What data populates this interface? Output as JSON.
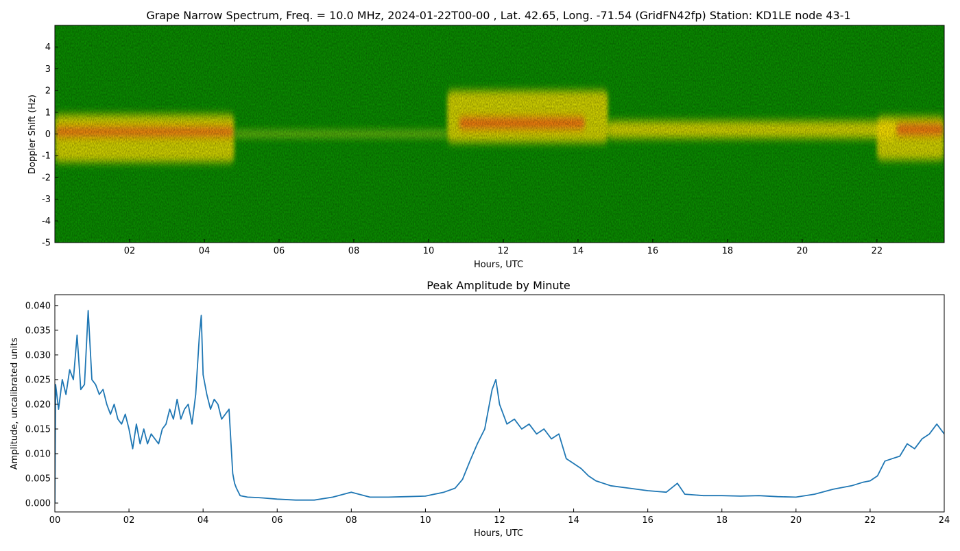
{
  "chart_data": [
    {
      "type": "heatmap",
      "title": "Grape Narrow Spectrum, Freq. = 10.0 MHz, 2024-01-22T00-00 , Lat.  42.65, Long. -71.54 (GridFN42fp) Station: KD1LE node 43-1",
      "xlabel": "Hours, UTC",
      "ylabel": "Doppler Shift (Hz)",
      "xlim": [
        0,
        23.8
      ],
      "ylim": [
        -5,
        5
      ],
      "x_ticks": [
        2,
        4,
        6,
        8,
        10,
        12,
        14,
        16,
        18,
        20,
        22
      ],
      "x_tick_labels": [
        "02",
        "04",
        "06",
        "08",
        "10",
        "12",
        "14",
        "16",
        "18",
        "20",
        "22"
      ],
      "y_ticks": [
        -5,
        -4,
        -3,
        -2,
        -1,
        0,
        1,
        2,
        3,
        4
      ],
      "y_tick_labels": [
        "-5",
        "-4",
        "-3",
        "-2",
        "-1",
        "0",
        "1",
        "2",
        "3",
        "4"
      ],
      "colors": {
        "background": "#0a8a00",
        "mid": "#c8e020",
        "high": "#ffe000",
        "peak": "#f06010"
      },
      "features": [
        {
          "x_start": 0.0,
          "x_end": 4.8,
          "center_hz": 0.1,
          "width_hz": 0.5,
          "level": "peak"
        },
        {
          "x_start": 0.0,
          "x_end": 4.8,
          "center_hz": -0.2,
          "width_hz": 2.2,
          "level": "high"
        },
        {
          "x_start": 4.8,
          "x_end": 10.5,
          "center_hz": 0.0,
          "width_hz": 0.2,
          "level": "mid"
        },
        {
          "x_start": 10.8,
          "x_end": 14.2,
          "center_hz": 0.5,
          "width_hz": 0.6,
          "level": "peak"
        },
        {
          "x_start": 10.5,
          "x_end": 14.8,
          "center_hz": 0.8,
          "width_hz": 2.4,
          "level": "high"
        },
        {
          "x_start": 14.8,
          "x_end": 22.5,
          "center_hz": 0.2,
          "width_hz": 0.8,
          "level": "high"
        },
        {
          "x_start": 22.5,
          "x_end": 23.8,
          "center_hz": 0.2,
          "width_hz": 0.6,
          "level": "peak"
        },
        {
          "x_start": 22.0,
          "x_end": 23.8,
          "center_hz": -0.2,
          "width_hz": 2.0,
          "level": "high"
        }
      ]
    },
    {
      "type": "line",
      "title": "Peak Amplitude by Minute",
      "xlabel": "Hours, UTC",
      "ylabel": "Amplitude, uncalibrated units",
      "xlim": [
        0,
        24
      ],
      "ylim": [
        -0.0018,
        0.0422
      ],
      "x_ticks": [
        0,
        2,
        4,
        6,
        8,
        10,
        12,
        14,
        16,
        18,
        20,
        22,
        24
      ],
      "x_tick_labels": [
        "00",
        "02",
        "04",
        "06",
        "08",
        "10",
        "12",
        "14",
        "16",
        "18",
        "20",
        "22",
        "24"
      ],
      "y_ticks": [
        0,
        0.005,
        0.01,
        0.015,
        0.02,
        0.025,
        0.03,
        0.035,
        0.04
      ],
      "y_tick_labels": [
        "0.000",
        "0.005",
        "0.010",
        "0.015",
        "0.020",
        "0.025",
        "0.030",
        "0.035",
        "0.040"
      ],
      "line_color": "#1f77b4",
      "series": [
        {
          "x": [
            0,
            0.02,
            0.1,
            0.2,
            0.3,
            0.4,
            0.5,
            0.6,
            0.7,
            0.8,
            0.9,
            1.0,
            1.1,
            1.2,
            1.3,
            1.4,
            1.5,
            1.6,
            1.7,
            1.8,
            1.9,
            2.0,
            2.1,
            2.2,
            2.3,
            2.4,
            2.5,
            2.6,
            2.7,
            2.8,
            2.9,
            3.0,
            3.1,
            3.2,
            3.3,
            3.4,
            3.5,
            3.6,
            3.7,
            3.8,
            3.9,
            3.95,
            4.0,
            4.1,
            4.2,
            4.3,
            4.4,
            4.5,
            4.6,
            4.7,
            4.8,
            4.85,
            4.9,
            5.0,
            5.2,
            5.5,
            6.0,
            6.5,
            7.0,
            7.5,
            8.0,
            8.5,
            9.0,
            9.5,
            10.0,
            10.5,
            10.8,
            11.0,
            11.2,
            11.4,
            11.6,
            11.8,
            11.9,
            12.0,
            12.2,
            12.4,
            12.6,
            12.8,
            13.0,
            13.2,
            13.4,
            13.6,
            13.8,
            14.0,
            14.2,
            14.4,
            14.6,
            14.8,
            15.0,
            15.5,
            16.0,
            16.5,
            16.8,
            17.0,
            17.5,
            18.0,
            18.5,
            19.0,
            19.5,
            20.0,
            20.5,
            21.0,
            21.5,
            21.8,
            22.0,
            22.2,
            22.4,
            22.6,
            22.8,
            23.0,
            23.2,
            23.4,
            23.6,
            23.8,
            24.0
          ],
          "values": [
            0.0,
            0.024,
            0.019,
            0.025,
            0.022,
            0.027,
            0.025,
            0.034,
            0.023,
            0.024,
            0.039,
            0.025,
            0.024,
            0.022,
            0.023,
            0.02,
            0.018,
            0.02,
            0.017,
            0.016,
            0.018,
            0.015,
            0.011,
            0.016,
            0.012,
            0.015,
            0.012,
            0.014,
            0.013,
            0.012,
            0.015,
            0.016,
            0.019,
            0.017,
            0.021,
            0.017,
            0.019,
            0.02,
            0.016,
            0.022,
            0.034,
            0.038,
            0.026,
            0.022,
            0.019,
            0.021,
            0.02,
            0.017,
            0.018,
            0.019,
            0.006,
            0.004,
            0.003,
            0.0015,
            0.0012,
            0.0011,
            0.0008,
            0.0006,
            0.0006,
            0.0012,
            0.0022,
            0.0012,
            0.0012,
            0.0013,
            0.0014,
            0.0022,
            0.003,
            0.0048,
            0.0085,
            0.012,
            0.015,
            0.023,
            0.025,
            0.02,
            0.016,
            0.017,
            0.015,
            0.016,
            0.014,
            0.015,
            0.013,
            0.014,
            0.009,
            0.008,
            0.007,
            0.0055,
            0.0045,
            0.004,
            0.0035,
            0.003,
            0.0025,
            0.0022,
            0.004,
            0.0018,
            0.0015,
            0.0015,
            0.0014,
            0.0015,
            0.0013,
            0.0012,
            0.0018,
            0.0028,
            0.0035,
            0.0042,
            0.0045,
            0.0055,
            0.0085,
            0.009,
            0.0095,
            0.012,
            0.011,
            0.013,
            0.014,
            0.016,
            0.014
          ]
        }
      ]
    }
  ]
}
